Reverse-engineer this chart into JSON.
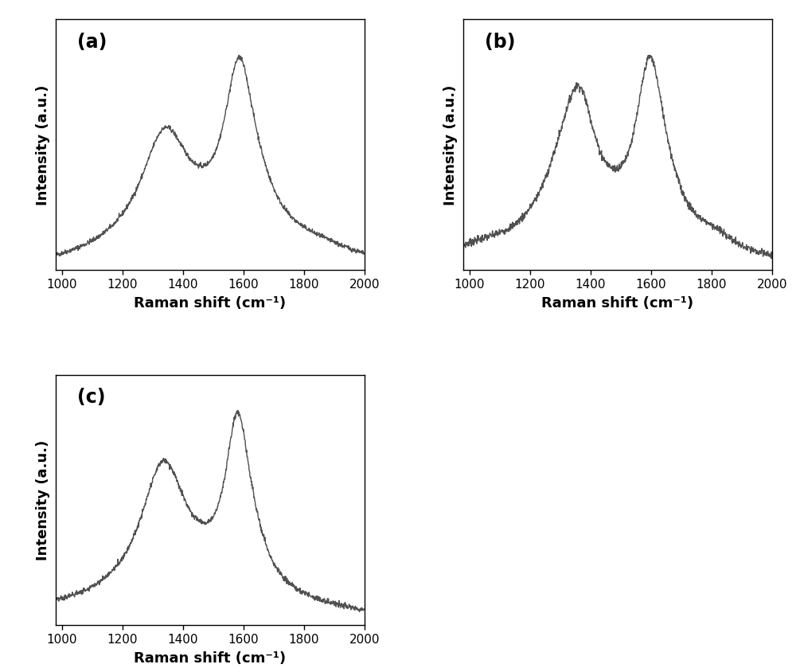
{
  "line_color": "#505050",
  "line_width": 1.0,
  "background_color": "#ffffff",
  "xlabel": "Raman shift (cm⁻¹)",
  "ylabel": "Intensity (a.u.)",
  "xlim": [
    980,
    2000
  ],
  "xticks": [
    1000,
    1200,
    1400,
    1600,
    1800,
    2000
  ],
  "panel_labels": [
    "(a)",
    "(b)",
    "(c)"
  ],
  "panel_label_fontsize": 17,
  "axis_fontsize": 13,
  "tick_fontsize": 11
}
